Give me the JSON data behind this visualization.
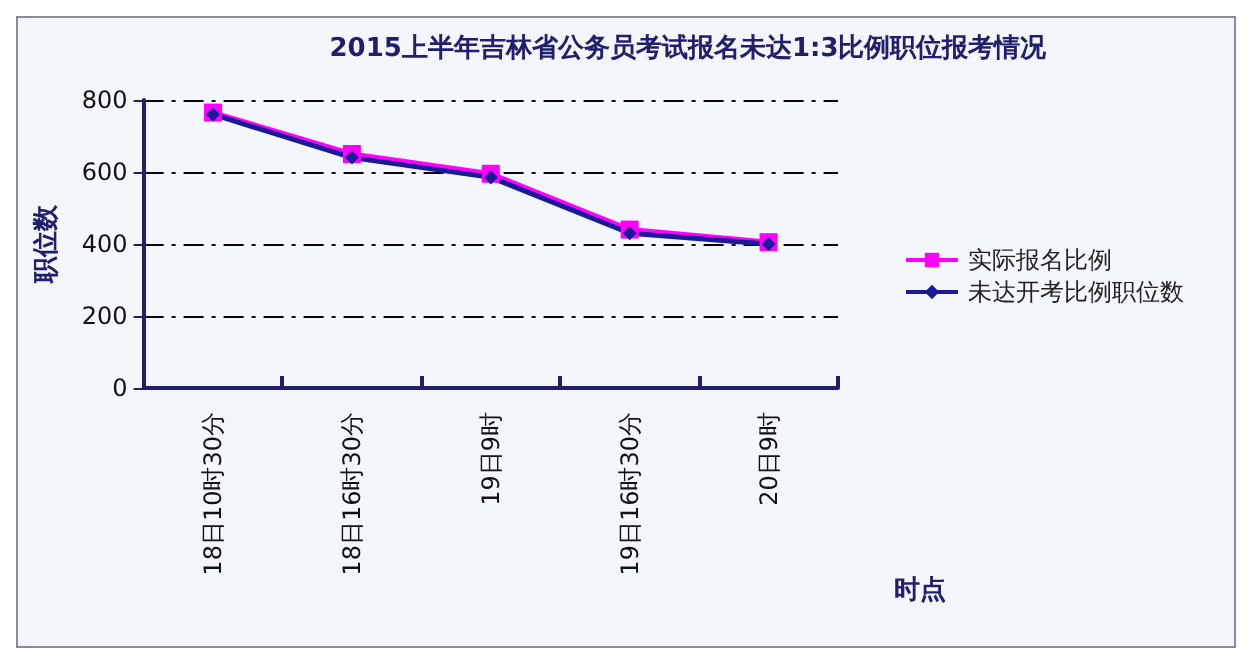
{
  "chart_data": {
    "type": "line",
    "title": "2015上半年吉林省公务员考试报名未达1:3比例职位报考情况",
    "xlabel": "时点",
    "ylabel": "职位数",
    "categories": [
      "18日10时30分",
      "18日16时30分",
      "19日9时",
      "19日16时30分",
      "20日9时"
    ],
    "series": [
      {
        "name": "实际报名比例",
        "color": "#ff00ff",
        "marker": "square",
        "values": [
          765,
          650,
          595,
          440,
          405
        ]
      },
      {
        "name": "未达开考比例职位数",
        "color": "#1a1a99",
        "marker": "diamond",
        "values": [
          760,
          640,
          585,
          430,
          400
        ]
      }
    ],
    "ylim": [
      0,
      800
    ],
    "yticks": [
      0,
      200,
      400,
      600,
      800
    ],
    "grid": "y",
    "legend": "right",
    "line_style": "solid"
  }
}
